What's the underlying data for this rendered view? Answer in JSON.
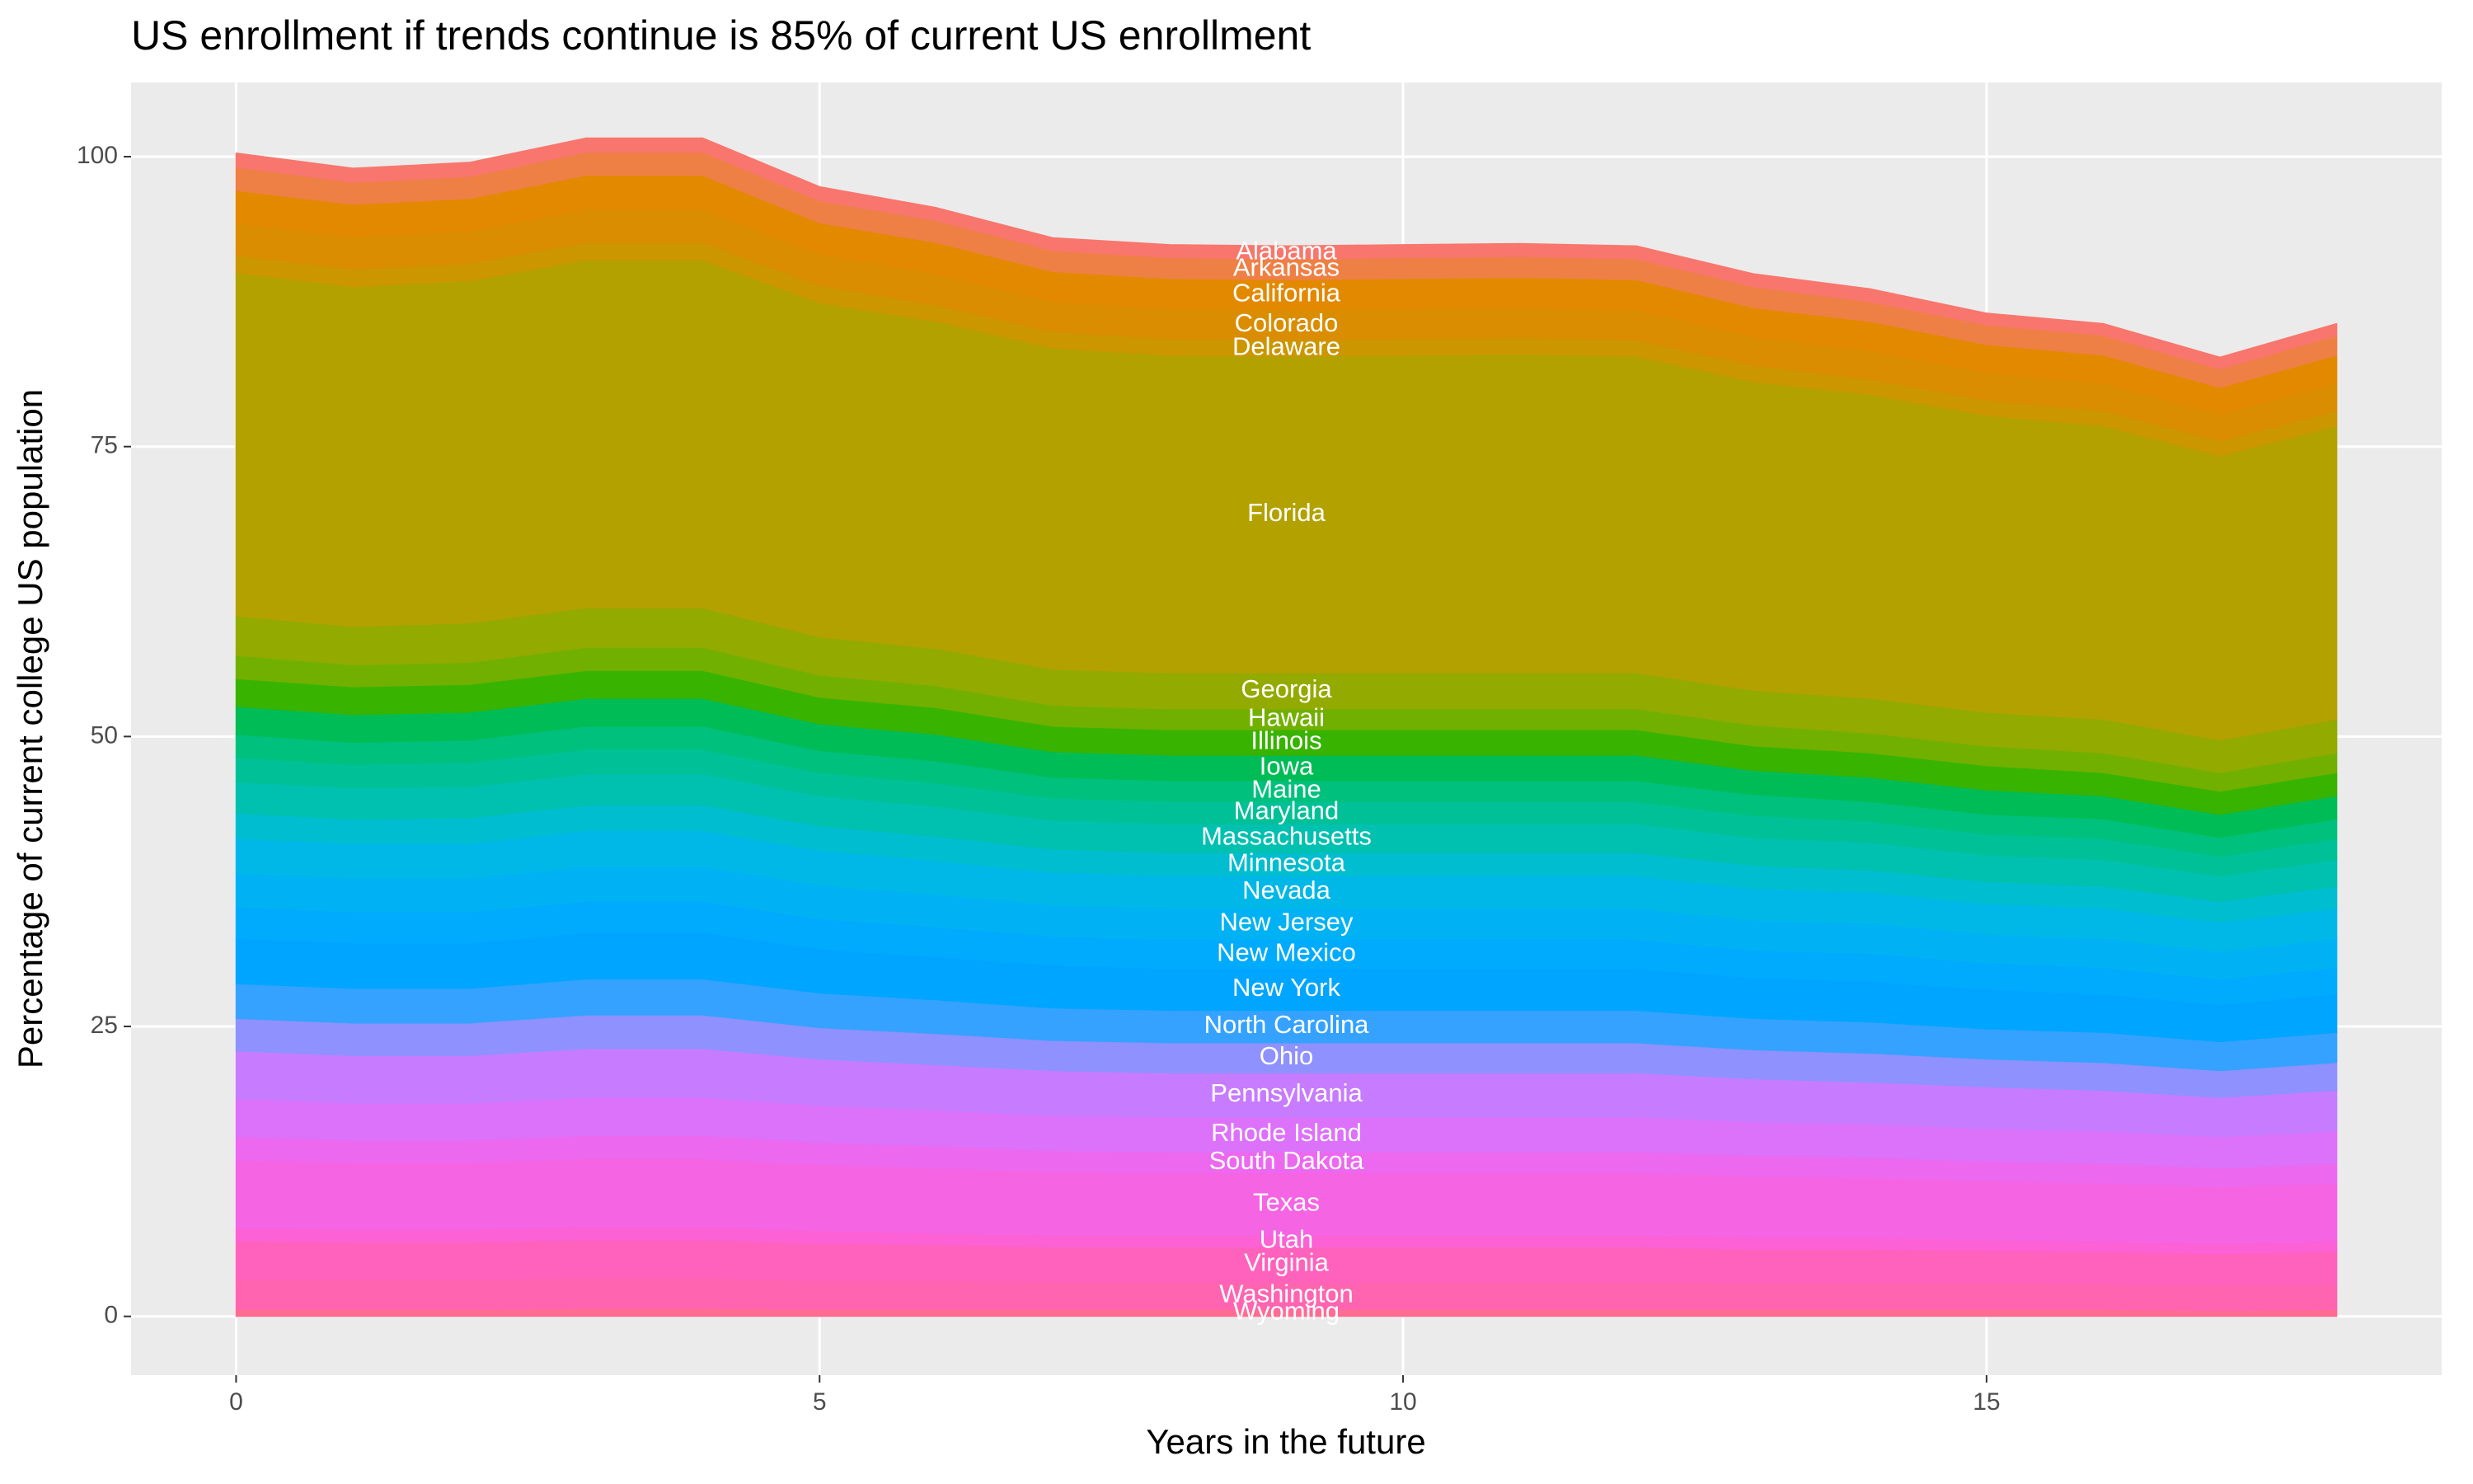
{
  "chart_data": {
    "type": "stacked_area",
    "title": "US enrollment if trends continue is 85% of current US enrollment",
    "xlabel": "Years in the future",
    "ylabel": "Percentage of current college US population",
    "x": [
      0,
      1,
      2,
      3,
      4,
      5,
      6,
      7,
      8,
      9,
      10,
      11,
      12,
      13,
      14,
      15,
      16,
      17,
      18
    ],
    "xlim": [
      -0.9,
      18.9
    ],
    "xticks": [
      0,
      5,
      10,
      15
    ],
    "ylim": [
      -5.07,
      106.4
    ],
    "yticks": [
      0,
      25,
      50,
      75,
      100
    ],
    "grid": true,
    "series": [
      {
        "name": "Wyoming",
        "color": "#FF6C91",
        "values": [
          0.6,
          0.6,
          0.6,
          0.7,
          0.7,
          0.6,
          0.6,
          0.6,
          0.6,
          0.6,
          0.6,
          0.6,
          0.6,
          0.6,
          0.6,
          0.6,
          0.6,
          0.5,
          0.6
        ]
      },
      {
        "name": "Washington",
        "color": "#FF64B0",
        "values": [
          2.6,
          2.6,
          2.6,
          2.6,
          2.6,
          2.5,
          2.5,
          2.4,
          2.4,
          2.4,
          2.4,
          2.4,
          2.4,
          2.3,
          2.3,
          2.3,
          2.2,
          2.2,
          2.2
        ]
      },
      {
        "name": "Virginia",
        "color": "#FF62BC",
        "values": [
          3.3,
          3.2,
          3.2,
          3.3,
          3.3,
          3.2,
          3.1,
          3.0,
          3.0,
          3.0,
          3.0,
          3.0,
          3.0,
          2.9,
          2.9,
          2.8,
          2.8,
          2.7,
          2.8
        ]
      },
      {
        "name": "Utah",
        "color": "#FC61D5",
        "values": [
          1.1,
          1.1,
          1.1,
          1.1,
          1.1,
          1.1,
          1.0,
          1.0,
          1.0,
          1.0,
          1.0,
          1.0,
          1.0,
          1.0,
          1.0,
          0.9,
          0.9,
          0.9,
          0.9
        ]
      },
      {
        "name": "Texas",
        "color": "#F564E3",
        "values": [
          5.9,
          5.8,
          5.8,
          5.9,
          5.9,
          5.7,
          5.6,
          5.5,
          5.4,
          5.4,
          5.4,
          5.4,
          5.4,
          5.3,
          5.2,
          5.1,
          5.0,
          4.9,
          5.0
        ]
      },
      {
        "name": "South Dakota",
        "color": "#EC69EF",
        "values": [
          2.0,
          1.9,
          1.9,
          2.0,
          2.0,
          1.9,
          1.9,
          1.8,
          1.8,
          1.8,
          1.8,
          1.8,
          1.8,
          1.8,
          1.7,
          1.7,
          1.7,
          1.6,
          1.7
        ]
      },
      {
        "name": "Rhode Island",
        "color": "#DC71FA",
        "values": [
          3.3,
          3.2,
          3.2,
          3.3,
          3.3,
          3.2,
          3.1,
          3.0,
          3.0,
          3.0,
          3.0,
          3.0,
          3.0,
          2.9,
          2.9,
          2.8,
          2.8,
          2.7,
          2.8
        ]
      },
      {
        "name": "Pennsylvania",
        "color": "#C77CFF",
        "values": [
          4.1,
          4.1,
          4.1,
          4.2,
          4.2,
          4.0,
          3.9,
          3.9,
          3.8,
          3.8,
          3.8,
          3.8,
          3.8,
          3.7,
          3.6,
          3.6,
          3.5,
          3.4,
          3.5
        ]
      },
      {
        "name": "Ohio",
        "color": "#8F91FF",
        "values": [
          2.8,
          2.8,
          2.8,
          2.9,
          2.9,
          2.7,
          2.7,
          2.6,
          2.6,
          2.6,
          2.6,
          2.6,
          2.6,
          2.5,
          2.5,
          2.4,
          2.4,
          2.3,
          2.4
        ]
      },
      {
        "name": "North Carolina",
        "color": "#35A2FF",
        "values": [
          3.0,
          3.0,
          3.0,
          3.1,
          3.1,
          3.0,
          2.9,
          2.8,
          2.8,
          2.8,
          2.8,
          2.8,
          2.8,
          2.7,
          2.7,
          2.6,
          2.6,
          2.5,
          2.6
        ]
      },
      {
        "name": "New York",
        "color": "#00A5FF",
        "values": [
          3.9,
          3.9,
          3.9,
          4.0,
          4.0,
          3.8,
          3.7,
          3.7,
          3.6,
          3.6,
          3.6,
          3.6,
          3.6,
          3.5,
          3.5,
          3.4,
          3.3,
          3.2,
          3.3
        ]
      },
      {
        "name": "New Mexico",
        "color": "#00ABFD",
        "values": [
          2.7,
          2.7,
          2.7,
          2.7,
          2.7,
          2.6,
          2.6,
          2.5,
          2.5,
          2.5,
          2.5,
          2.5,
          2.5,
          2.4,
          2.4,
          2.3,
          2.3,
          2.2,
          2.3
        ]
      },
      {
        "name": "New Jersey",
        "color": "#00B2F3",
        "values": [
          2.9,
          2.9,
          2.9,
          3.0,
          3.0,
          2.9,
          2.8,
          2.7,
          2.7,
          2.7,
          2.7,
          2.7,
          2.7,
          2.6,
          2.6,
          2.5,
          2.5,
          2.4,
          2.5
        ]
      },
      {
        "name": "Nevada",
        "color": "#00B8E7",
        "values": [
          3.0,
          3.0,
          3.0,
          3.1,
          3.1,
          3.0,
          2.9,
          2.8,
          2.8,
          2.8,
          2.8,
          2.8,
          2.8,
          2.7,
          2.7,
          2.6,
          2.6,
          2.5,
          2.6
        ]
      },
      {
        "name": "Minnesota",
        "color": "#00BDD0",
        "values": [
          2.2,
          2.1,
          2.2,
          2.2,
          2.2,
          2.1,
          2.1,
          2.0,
          2.0,
          2.0,
          2.0,
          2.0,
          2.0,
          2.0,
          1.9,
          1.9,
          1.9,
          1.8,
          1.9
        ]
      },
      {
        "name": "Massachusetts",
        "color": "#00C0AF",
        "values": [
          2.7,
          2.7,
          2.7,
          2.7,
          2.7,
          2.6,
          2.6,
          2.5,
          2.5,
          2.5,
          2.5,
          2.5,
          2.5,
          2.4,
          2.4,
          2.3,
          2.3,
          2.2,
          2.3
        ]
      },
      {
        "name": "Maryland",
        "color": "#00C097",
        "values": [
          2.1,
          2.0,
          2.1,
          2.1,
          2.1,
          2.0,
          2.0,
          1.9,
          1.9,
          1.9,
          1.9,
          1.9,
          1.9,
          1.9,
          1.8,
          1.8,
          1.8,
          1.7,
          1.8
        ]
      },
      {
        "name": "Maine",
        "color": "#00C07E",
        "values": [
          2.0,
          1.9,
          1.9,
          2.0,
          2.0,
          1.9,
          1.9,
          1.8,
          1.8,
          1.8,
          1.8,
          1.8,
          1.8,
          1.8,
          1.7,
          1.7,
          1.7,
          1.6,
          1.7
        ]
      },
      {
        "name": "Iowa",
        "color": "#00BC56",
        "values": [
          2.4,
          2.4,
          2.4,
          2.4,
          2.4,
          2.3,
          2.3,
          2.2,
          2.2,
          2.2,
          2.2,
          2.2,
          2.2,
          2.1,
          2.1,
          2.1,
          2.0,
          2.0,
          2.0
        ]
      },
      {
        "name": "Illinois",
        "color": "#38B300",
        "values": [
          2.4,
          2.4,
          2.4,
          2.4,
          2.4,
          2.3,
          2.3,
          2.2,
          2.2,
          2.2,
          2.2,
          2.2,
          2.2,
          2.1,
          2.1,
          2.1,
          2.0,
          2.0,
          2.0
        ]
      },
      {
        "name": "Hawaii",
        "color": "#72B000",
        "values": [
          2.0,
          1.9,
          1.9,
          2.0,
          2.0,
          1.9,
          1.9,
          1.8,
          1.8,
          1.8,
          1.8,
          1.8,
          1.8,
          1.8,
          1.7,
          1.7,
          1.7,
          1.6,
          1.7
        ]
      },
      {
        "name": "Georgia",
        "color": "#93AA00",
        "values": [
          3.4,
          3.3,
          3.4,
          3.4,
          3.4,
          3.3,
          3.2,
          3.1,
          3.1,
          3.1,
          3.1,
          3.1,
          3.1,
          3.0,
          3.0,
          2.9,
          2.9,
          2.8,
          2.9
        ]
      },
      {
        "name": "Florida",
        "color": "#B3A100",
        "values": [
          29.6,
          29.3,
          29.5,
          30.0,
          30.0,
          28.8,
          28.2,
          27.7,
          27.4,
          27.3,
          27.4,
          27.5,
          27.3,
          26.6,
          26.2,
          25.6,
          25.3,
          24.5,
          25.3
        ]
      },
      {
        "name": "Delaware",
        "color": "#CB9600",
        "values": [
          1.5,
          1.5,
          1.5,
          1.5,
          1.5,
          1.5,
          1.4,
          1.4,
          1.4,
          1.4,
          1.4,
          1.4,
          1.4,
          1.4,
          1.3,
          1.3,
          1.3,
          1.3,
          1.3
        ]
      },
      {
        "name": "Colorado",
        "color": "#DA8D00",
        "values": [
          2.8,
          2.8,
          2.8,
          2.9,
          2.9,
          2.7,
          2.7,
          2.6,
          2.6,
          2.6,
          2.6,
          2.6,
          2.6,
          2.5,
          2.5,
          2.4,
          2.4,
          2.3,
          2.4
        ]
      },
      {
        "name": "California",
        "color": "#E38900",
        "values": [
          2.8,
          2.8,
          2.8,
          2.9,
          2.9,
          2.7,
          2.7,
          2.6,
          2.6,
          2.6,
          2.6,
          2.6,
          2.6,
          2.5,
          2.5,
          2.4,
          2.4,
          2.3,
          2.4
        ]
      },
      {
        "name": "Arkansas",
        "color": "#EE8045",
        "values": [
          2.0,
          1.9,
          1.9,
          2.0,
          2.0,
          1.9,
          1.9,
          1.8,
          1.8,
          1.8,
          1.8,
          1.8,
          1.8,
          1.8,
          1.7,
          1.7,
          1.7,
          1.6,
          1.7
        ]
      },
      {
        "name": "Alabama",
        "color": "#F8766D",
        "values": [
          1.2,
          1.2,
          1.2,
          1.2,
          1.2,
          1.2,
          1.1,
          1.1,
          1.1,
          1.1,
          1.1,
          1.1,
          1.1,
          1.1,
          1.1,
          1.0,
          1.0,
          1.0,
          1.0
        ]
      }
    ]
  }
}
